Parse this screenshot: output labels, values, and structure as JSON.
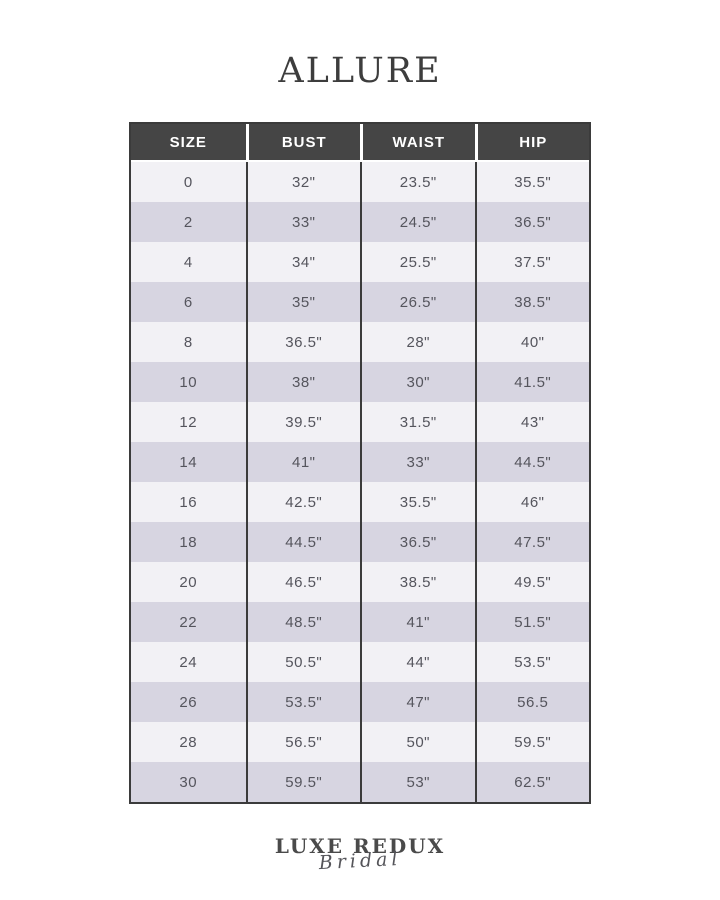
{
  "page": {
    "title": "ALLURE"
  },
  "table": {
    "columns": [
      "SIZE",
      "BUST",
      "WAIST",
      "HIP"
    ],
    "rows": [
      [
        "0",
        "32\"",
        "23.5\"",
        "35.5\""
      ],
      [
        "2",
        "33\"",
        "24.5\"",
        "36.5\""
      ],
      [
        "4",
        "34\"",
        "25.5\"",
        "37.5\""
      ],
      [
        "6",
        "35\"",
        "26.5\"",
        "38.5\""
      ],
      [
        "8",
        "36.5\"",
        "28\"",
        "40\""
      ],
      [
        "10",
        "38\"",
        "30\"",
        "41.5\""
      ],
      [
        "12",
        "39.5\"",
        "31.5\"",
        "43\""
      ],
      [
        "14",
        "41\"",
        "33\"",
        "44.5\""
      ],
      [
        "16",
        "42.5\"",
        "35.5\"",
        "46\""
      ],
      [
        "18",
        "44.5\"",
        "36.5\"",
        "47.5\""
      ],
      [
        "20",
        "46.5\"",
        "38.5\"",
        "49.5\""
      ],
      [
        "22",
        "48.5\"",
        "41\"",
        "51.5\""
      ],
      [
        "24",
        "50.5\"",
        "44\"",
        "53.5\""
      ],
      [
        "26",
        "53.5\"",
        "47\"",
        "56.5"
      ],
      [
        "28",
        "56.5\"",
        "50\"",
        "59.5\""
      ],
      [
        "30",
        "59.5\"",
        "53\"",
        "62.5\""
      ]
    ],
    "colors": {
      "header_bg": "#454545",
      "header_text": "#ffffff",
      "row_light": "#f2f1f5",
      "row_lavender": "#d7d5e1",
      "border": "#3b3b3b",
      "cell_text": "#55555d"
    }
  },
  "footer": {
    "brand_line1": "LUXE REDUX",
    "brand_line2": "Bridal"
  }
}
